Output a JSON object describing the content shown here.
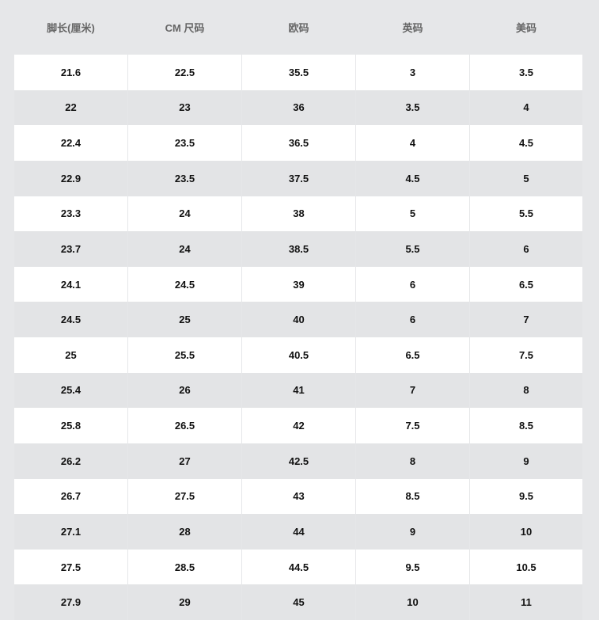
{
  "table": {
    "header": [
      "脚长(厘米)",
      "CM 尺码",
      "欧码",
      "英码",
      "美码"
    ],
    "rows": [
      [
        "21.6",
        "22.5",
        "35.5",
        "3",
        "3.5"
      ],
      [
        "22",
        "23",
        "36",
        "3.5",
        "4"
      ],
      [
        "22.4",
        "23.5",
        "36.5",
        "4",
        "4.5"
      ],
      [
        "22.9",
        "23.5",
        "37.5",
        "4.5",
        "5"
      ],
      [
        "23.3",
        "24",
        "38",
        "5",
        "5.5"
      ],
      [
        "23.7",
        "24",
        "38.5",
        "5.5",
        "6"
      ],
      [
        "24.1",
        "24.5",
        "39",
        "6",
        "6.5"
      ],
      [
        "24.5",
        "25",
        "40",
        "6",
        "7"
      ],
      [
        "25",
        "25.5",
        "40.5",
        "6.5",
        "7.5"
      ],
      [
        "25.4",
        "26",
        "41",
        "7",
        "8"
      ],
      [
        "25.8",
        "26.5",
        "42",
        "7.5",
        "8.5"
      ],
      [
        "26.2",
        "27",
        "42.5",
        "8",
        "9"
      ],
      [
        "26.7",
        "27.5",
        "43",
        "8.5",
        "9.5"
      ],
      [
        "27.1",
        "28",
        "44",
        "9",
        "10"
      ],
      [
        "27.5",
        "28.5",
        "44.5",
        "9.5",
        "10.5"
      ],
      [
        "27.9",
        "29",
        "45",
        "10",
        "11"
      ]
    ]
  }
}
